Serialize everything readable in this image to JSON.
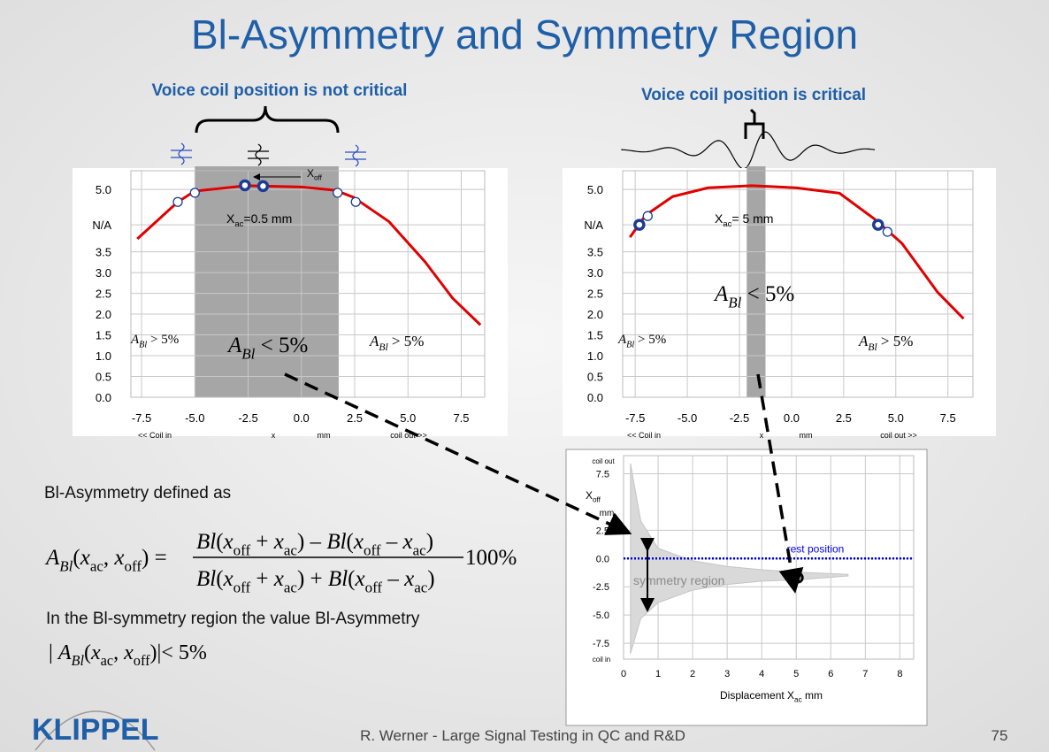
{
  "title": "Bl-Asymmetry and Symmetry Region",
  "left_panel": {
    "heading": "Voice coil position is not critical",
    "chart": {
      "xlim": [
        -8,
        8.6
      ],
      "ylim": [
        0,
        5.45
      ],
      "xticks": [
        -7.5,
        {
          "value": -5,
          "label": "-5.0"
        },
        -2.5,
        {
          "value": 0,
          "label": "0.0"
        },
        2.5,
        {
          "value": 5,
          "label": "5.0"
        },
        7.5
      ],
      "yticks": [
        {
          "value": 0,
          "label": "0.0"
        },
        0.5,
        {
          "value": 1,
          "label": "1.0"
        },
        1.5,
        {
          "value": 2,
          "label": "2.0"
        },
        2.5,
        {
          "value": 3,
          "label": "3.0"
        },
        3.5,
        {
          "value": 4.15,
          "label": "N/A"
        },
        {
          "value": 5,
          "label": "5.0"
        }
      ],
      "axis_labels": [
        "<< Coil in",
        "x",
        "mm",
        "coil out >>"
      ],
      "grid": true,
      "region": [
        -5,
        1.75
      ],
      "region_color": "#a6a6a6",
      "curve": {
        "color": "#e00000",
        "x": [
          -7.7,
          -5.8,
          -5,
          -2.6,
          0,
          1.6,
          2.45,
          4.1,
          5.8,
          7.1,
          8.4
        ],
        "y": [
          3.81,
          4.7,
          4.96,
          5.09,
          5.06,
          4.98,
          4.81,
          4.23,
          3.26,
          2.38,
          1.74
        ]
      },
      "markers": {
        "color": "#1c3c94",
        "x": [
          -5.8,
          -5,
          -2.65,
          -1.8,
          1.7,
          2.55
        ],
        "y": [
          4.7,
          4.92,
          5.1,
          5.08,
          4.92,
          4.7
        ],
        "style": [
          "thin",
          "thin",
          "bold",
          "bold",
          "thin",
          "thin"
        ]
      },
      "annotations": [
        {
          "font": "sans",
          "parts": [
            [
              "X",
              ""
            ],
            [
              "ac",
              "s"
            ],
            [
              "=0.5 mm",
              ""
            ]
          ]
        },
        {
          "font": "sans",
          "parts": [
            [
              "X",
              ""
            ],
            [
              "off",
              "s"
            ]
          ]
        },
        {
          "font": "serif",
          "parts": [
            [
              "A",
              "i"
            ],
            [
              "Bl",
              "is"
            ],
            [
              " > 5%",
              ""
            ]
          ]
        },
        {
          "font": "serif",
          "parts": [
            [
              "A",
              "i"
            ],
            [
              "Bl",
              "is"
            ],
            [
              " < 5%",
              ""
            ]
          ]
        },
        {
          "font": "serif",
          "parts": [
            [
              "A",
              "i"
            ],
            [
              "Bl",
              "is"
            ],
            [
              " > 5%",
              ""
            ]
          ]
        }
      ]
    }
  },
  "right_panel": {
    "heading": "Voice coil position is critical",
    "chart": {
      "xlim": [
        -8.1,
        8.7
      ],
      "ylim": [
        0,
        5.45
      ],
      "xticks": [
        -7.5,
        {
          "value": -5,
          "label": "-5.0"
        },
        -2.5,
        {
          "value": 0,
          "label": "0.0"
        },
        2.5,
        {
          "value": 5,
          "label": "5.0"
        },
        7.5
      ],
      "yticks": [
        {
          "value": 0,
          "label": "0.0"
        },
        0.5,
        {
          "value": 1,
          "label": "1.0"
        },
        1.5,
        {
          "value": 2,
          "label": "2.0"
        },
        2.5,
        {
          "value": 3,
          "label": "3.0"
        },
        3.5,
        {
          "value": 4.15,
          "label": "N/A"
        },
        {
          "value": 5,
          "label": "5.0"
        }
      ],
      "axis_labels": [
        "<< Coil in",
        "x",
        "mm",
        "coil out >>"
      ],
      "grid": true,
      "region": [
        -2.15,
        -1.25
      ],
      "region_color": "#a6a6a6",
      "curve": {
        "color": "#e00000",
        "x": [
          -7.75,
          -7,
          -5.7,
          -4,
          -1.9,
          0.2,
          2.3,
          4,
          5.3,
          7,
          8.25
        ],
        "y": [
          3.85,
          4.38,
          4.83,
          5.04,
          5.09,
          5.04,
          4.91,
          4.28,
          3.7,
          2.53,
          1.89
        ]
      },
      "markers": {
        "color": "#1c3c94",
        "x": [
          -7.3,
          -6.9,
          4.15,
          4.6
        ],
        "y": [
          4.15,
          4.36,
          4.15,
          3.98
        ],
        "style": [
          "bold",
          "thin",
          "bold",
          "thin"
        ]
      },
      "annotations": [
        {
          "font": "sans",
          "parts": [
            [
              "X",
              ""
            ],
            [
              "ac",
              "s"
            ],
            [
              "= 5 mm",
              ""
            ]
          ]
        },
        {
          "font": "serif",
          "parts": [
            [
              "A",
              "i"
            ],
            [
              "Bl",
              "is"
            ],
            [
              " < 5%",
              ""
            ]
          ]
        },
        {
          "font": "serif",
          "parts": [
            [
              "A",
              "i"
            ],
            [
              "Bl",
              "is"
            ],
            [
              " > 5%",
              ""
            ]
          ]
        },
        {
          "font": "serif",
          "parts": [
            [
              "A",
              "i"
            ],
            [
              "Bl",
              "is"
            ],
            [
              " > 5%",
              ""
            ]
          ]
        }
      ]
    }
  },
  "bottom_chart": {
    "xlim": [
      0,
      8.4
    ],
    "ylim": [
      -8.9,
      9.1
    ],
    "xticks": [
      0,
      1,
      2,
      3,
      4,
      5,
      6,
      7,
      8
    ],
    "yticks": [
      -7.5,
      {
        "value": -5,
        "label": "-5.0"
      },
      -2.5,
      {
        "value": 0,
        "label": "0.0"
      },
      2.5,
      7.5
    ],
    "y_labels": [
      "coil out",
      [
        [
          "X",
          ""
        ],
        [
          "off",
          "s"
        ]
      ],
      "mm",
      "coil in"
    ],
    "x_label": [
      [
        "Displacement X",
        ""
      ],
      [
        "ac",
        "s"
      ],
      [
        " mm",
        ""
      ]
    ],
    "grid": true,
    "region": {
      "color": "#d9d9d9",
      "label": "symmetry region",
      "x": [
        0.2,
        0.5,
        1,
        2,
        3,
        4,
        5,
        6.5
      ],
      "upper": [
        8.4,
        3.3,
        0.9,
        -0.2,
        -0.7,
        -1,
        -1.2,
        -1.4
      ],
      "lower": [
        -8.4,
        -5.3,
        -3.9,
        -2.8,
        -2.3,
        -2,
        -1.9,
        -1.55
      ]
    },
    "rest_position": {
      "value": 0,
      "label": "rest position",
      "color": "#0000e0"
    },
    "rest_marker": {
      "x": 5.05,
      "y": -1.7
    }
  },
  "text": {
    "defined": "Bl-Asymmetry defined as",
    "formula": {
      "lhs": [
        [
          "A",
          "i"
        ],
        [
          "Bl",
          "is"
        ],
        [
          "(",
          ""
        ],
        [
          "x",
          "i"
        ],
        [
          "ac",
          "s"
        ],
        [
          ", ",
          ""
        ],
        [
          "x",
          "i"
        ],
        [
          "off",
          "s"
        ],
        [
          ") =",
          ""
        ]
      ],
      "numerator": [
        [
          "Bl",
          "i"
        ],
        [
          "(",
          ""
        ],
        [
          "x",
          "i"
        ],
        [
          "off",
          "s"
        ],
        [
          " + ",
          ""
        ],
        [
          "x",
          "i"
        ],
        [
          "ac",
          "s"
        ],
        [
          ") – ",
          ""
        ],
        [
          "Bl",
          "i"
        ],
        [
          "(",
          ""
        ],
        [
          "x",
          "i"
        ],
        [
          "off",
          "s"
        ],
        [
          " – ",
          ""
        ],
        [
          "x",
          "i"
        ],
        [
          "ac",
          "s"
        ],
        [
          ")",
          ""
        ]
      ],
      "denominator": [
        [
          "Bl",
          "i"
        ],
        [
          "(",
          ""
        ],
        [
          "x",
          "i"
        ],
        [
          "off",
          "s"
        ],
        [
          " + ",
          ""
        ],
        [
          "x",
          "i"
        ],
        [
          "ac",
          "s"
        ],
        [
          ") + ",
          ""
        ],
        [
          "Bl",
          "i"
        ],
        [
          "(",
          ""
        ],
        [
          "x",
          "i"
        ],
        [
          "off",
          "s"
        ],
        [
          " – ",
          ""
        ],
        [
          "x",
          "i"
        ],
        [
          "ac",
          "s"
        ],
        [
          ")",
          ""
        ]
      ],
      "factor": "100%"
    },
    "region_text": "In the Bl-symmetry region the value Bl-Asymmetry",
    "condition": [
      [
        "| ",
        ""
      ],
      [
        "A",
        "i"
      ],
      [
        "Bl",
        "is"
      ],
      [
        "(",
        ""
      ],
      [
        "x",
        "i"
      ],
      [
        "ac",
        "s"
      ],
      [
        ", ",
        ""
      ],
      [
        "x",
        "i"
      ],
      [
        "off",
        "s"
      ],
      [
        ")|< 5%",
        ""
      ]
    ]
  },
  "footer": {
    "logo": "KLIPPEL",
    "author": "R. Werner - Large Signal Testing in QC and R&D",
    "page": "75"
  }
}
